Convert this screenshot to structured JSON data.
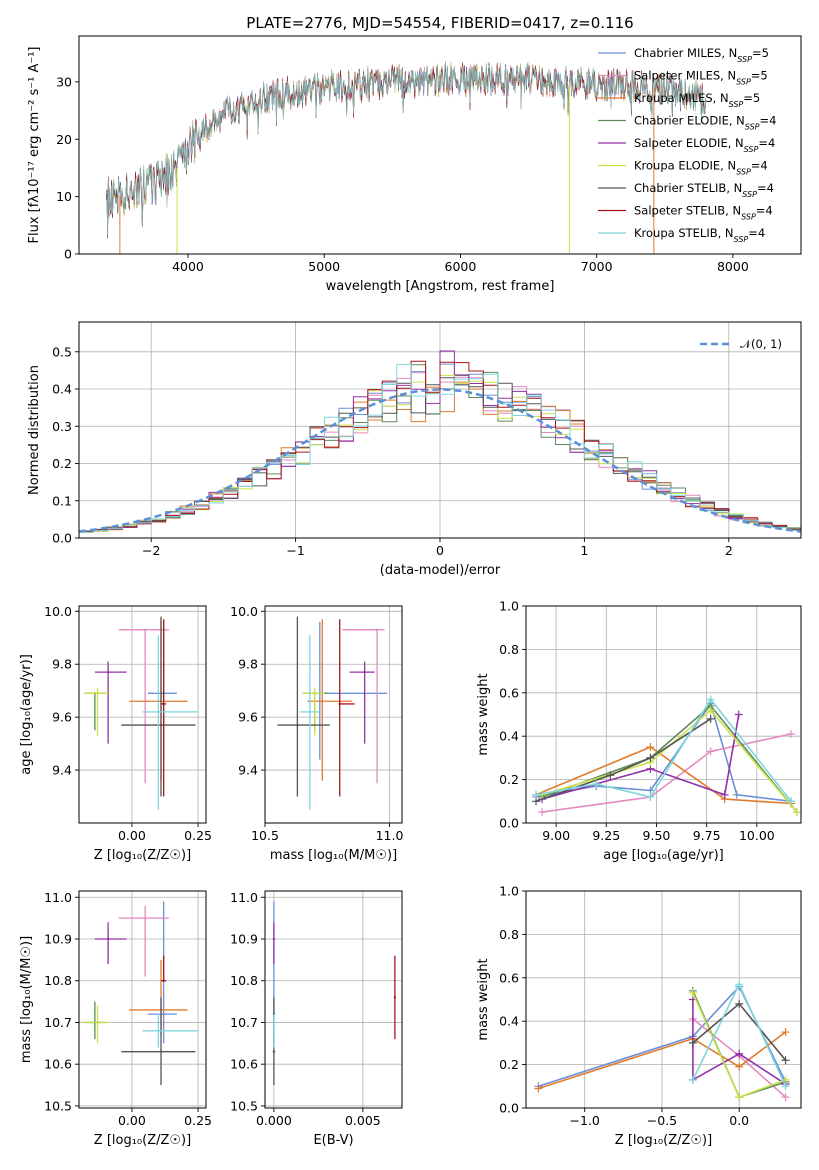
{
  "colors": {
    "Chabrier MILES": "#6d8fd8",
    "Salpeter MILES": "#e58ac0",
    "Kroupa MILES": "#e07b2c",
    "Chabrier ELODIE": "#5f8a5a",
    "Salpeter ELODIE": "#9330a8",
    "Kroupa ELODIE": "#c9e24a",
    "Chabrier STELIB": "#555555",
    "Salpeter STELIB": "#a8141e",
    "Kroupa STELIB": "#7ed6dc",
    "normal": "#5b8fd6"
  },
  "chart_data": [
    {
      "id": "spectrum",
      "type": "line",
      "title": "PLATE=2776, MJD=54554, FIBERID=0417, z=0.116",
      "xlabel": "wavelength [Angstrom, rest frame]",
      "ylabel": "Flux [fλ10⁻¹⁷ erg cm⁻² s⁻¹ A⁻¹]",
      "xlim": [
        3200,
        8500
      ],
      "ylim": [
        0,
        38
      ],
      "xticks": [
        "4000",
        "5000",
        "6000",
        "7000",
        "8000"
      ],
      "yticks": [
        "0",
        "10",
        "20",
        "30"
      ],
      "grid": false,
      "legend_position": "top-right",
      "legend": [
        "Chabrier MILES, N_SSP=5",
        "Salpeter MILES, N_SSP=5",
        "Kroupa MILES, N_SSP=5",
        "Chabrier ELODIE, N_SSP=4",
        "Salpeter ELODIE, N_SSP=4",
        "Kroupa ELODIE, N_SSP=4",
        "Chabrier STELIB, N_SSP=4",
        "Salpeter STELIB, N_SSP=4",
        "Kroupa STELIB, N_SSP=4"
      ],
      "legend_keys": [
        "Chabrier MILES",
        "Salpeter MILES",
        "Kroupa MILES",
        "Chabrier ELODIE",
        "Salpeter ELODIE",
        "Kroupa ELODIE",
        "Chabrier STELIB",
        "Salpeter STELIB",
        "Kroupa STELIB"
      ],
      "continuum": [
        [
          3400,
          9.5
        ],
        [
          3600,
          11
        ],
        [
          3800,
          13
        ],
        [
          3950,
          15.5
        ],
        [
          4050,
          21
        ],
        [
          4300,
          25
        ],
        [
          4600,
          27.5
        ],
        [
          5000,
          29
        ],
        [
          5500,
          30
        ],
        [
          6000,
          30.5
        ],
        [
          6500,
          30.5
        ],
        [
          7000,
          29.5
        ],
        [
          7500,
          29
        ],
        [
          7800,
          27
        ]
      ],
      "spectrum_range": [
        3400,
        7800
      ],
      "spikes": [
        {
          "x": 3500,
          "series": "Kroupa MILES"
        },
        {
          "x": 3920,
          "series": "Kroupa ELODIE"
        },
        {
          "x": 6800,
          "series": "Kroupa ELODIE"
        },
        {
          "x": 7420,
          "series": "Kroupa MILES"
        }
      ]
    },
    {
      "id": "histogram",
      "type": "bar",
      "xlabel": "(data-model)/error",
      "ylabel": "Normed distribution",
      "xlim": [
        -2.5,
        2.5
      ],
      "ylim": [
        0,
        0.58
      ],
      "xticks": [
        "−2",
        "−1",
        "0",
        "1",
        "2"
      ],
      "yticks": [
        "0.0",
        "0.1",
        "0.2",
        "0.3",
        "0.4",
        "0.5"
      ],
      "grid": true,
      "legend_position": "top-right",
      "legend": [
        "𝒩(0, 1)"
      ],
      "bin_width": 0.1
    },
    {
      "id": "age_vs_Z",
      "type": "scatter",
      "xlabel": "Z [log₁₀(Z/Z☉)]",
      "ylabel": "age  [log₁₀(age/yr)]",
      "xlim": [
        -0.2,
        0.28
      ],
      "ylim": [
        9.2,
        10.02
      ],
      "xticks": [
        "0.00",
        "0.25"
      ],
      "yticks": [
        "9.4",
        "9.6",
        "9.8",
        "10.0"
      ],
      "grid": true,
      "points": [
        {
          "series": "Chabrier MILES",
          "x": 0.12,
          "y": 9.69,
          "xerr": [
            0.06,
            0.05
          ],
          "yerr": [
            0.25,
            0.27
          ]
        },
        {
          "series": "Salpeter MILES",
          "x": 0.05,
          "y": 9.93,
          "xerr": [
            0.1,
            0.09
          ],
          "yerr": [
            0.58,
            0.0
          ]
        },
        {
          "series": "Kroupa MILES",
          "x": 0.11,
          "y": 9.66,
          "xerr": [
            0.12,
            0.1
          ],
          "yerr": [
            0.3,
            0.31
          ]
        },
        {
          "series": "Chabrier ELODIE",
          "x": -0.14,
          "y": 9.69,
          "xerr": [
            0.04,
            0.04
          ],
          "yerr": [
            0.14,
            0.0
          ]
        },
        {
          "series": "Salpeter ELODIE",
          "x": -0.09,
          "y": 9.77,
          "xerr": [
            0.05,
            0.07
          ],
          "yerr": [
            0.27,
            0.04
          ]
        },
        {
          "series": "Kroupa ELODIE",
          "x": -0.13,
          "y": 9.69,
          "xerr": [
            0.05,
            0.04
          ],
          "yerr": [
            0.16,
            0.02
          ]
        },
        {
          "series": "Chabrier STELIB",
          "x": 0.11,
          "y": 9.57,
          "xerr": [
            0.15,
            0.13
          ],
          "yerr": [
            0.27,
            0.41
          ]
        },
        {
          "series": "Salpeter STELIB",
          "x": 0.12,
          "y": 9.65,
          "xerr": [
            0.01,
            0.01
          ],
          "yerr": [
            0.35,
            0.32
          ]
        },
        {
          "series": "Kroupa STELIB",
          "x": 0.1,
          "y": 9.62,
          "xerr": [
            0.06,
            0.15
          ],
          "yerr": [
            0.37,
            0.29
          ]
        }
      ]
    },
    {
      "id": "age_vs_mass",
      "type": "scatter",
      "xlabel": "mass [log₁₀(M/M☉)]",
      "ylabel": "",
      "xlim": [
        10.5,
        11.05
      ],
      "ylim": [
        9.2,
        10.02
      ],
      "xticks": [
        "10.5",
        "11.0"
      ],
      "yticks": [
        "9.4",
        "9.6",
        "9.8",
        "10.0"
      ],
      "grid": true,
      "points": [
        {
          "series": "Chabrier MILES",
          "x": 10.72,
          "y": 9.69,
          "xerr": [
            0.07,
            0.27
          ],
          "yerr": [
            0.25,
            0.27
          ]
        },
        {
          "series": "Salpeter MILES",
          "x": 10.95,
          "y": 9.93,
          "xerr": [
            0.14,
            0.03
          ],
          "yerr": [
            0.58,
            0.0
          ]
        },
        {
          "series": "Kroupa MILES",
          "x": 10.73,
          "y": 9.66,
          "xerr": [
            0.06,
            0.12
          ],
          "yerr": [
            0.3,
            0.31
          ]
        },
        {
          "series": "Chabrier ELODIE",
          "x": 10.7,
          "y": 9.69,
          "xerr": [
            0.04,
            0.05
          ],
          "yerr": [
            0.14,
            0.0
          ]
        },
        {
          "series": "Salpeter ELODIE",
          "x": 10.9,
          "y": 9.77,
          "xerr": [
            0.06,
            0.04
          ],
          "yerr": [
            0.27,
            0.04
          ]
        },
        {
          "series": "Kroupa ELODIE",
          "x": 10.7,
          "y": 9.69,
          "xerr": [
            0.05,
            0.04
          ],
          "yerr": [
            0.16,
            0.02
          ]
        },
        {
          "series": "Chabrier STELIB",
          "x": 10.63,
          "y": 9.57,
          "xerr": [
            0.08,
            0.13
          ],
          "yerr": [
            0.27,
            0.41
          ]
        },
        {
          "series": "Salpeter STELIB",
          "x": 10.8,
          "y": 9.65,
          "xerr": [
            0.0,
            0.06
          ],
          "yerr": [
            0.35,
            0.32
          ]
        },
        {
          "series": "Kroupa STELIB",
          "x": 10.68,
          "y": 9.62,
          "xerr": [
            0.04,
            0.04
          ],
          "yerr": [
            0.37,
            0.29
          ]
        }
      ]
    },
    {
      "id": "weight_vs_age",
      "type": "line",
      "xlabel": "age  [log₁₀(age/yr)]",
      "ylabel": "mass weight",
      "xlim": [
        8.85,
        10.22
      ],
      "ylim": [
        0,
        1.0
      ],
      "xticks": [
        "9.00",
        "9.25",
        "9.50",
        "9.75",
        "10.00"
      ],
      "yticks": [
        "0.0",
        "0.2",
        "0.4",
        "0.6",
        "0.8",
        "1.0"
      ],
      "grid": true,
      "series": [
        {
          "key": "Chabrier MILES",
          "x": [
            8.9,
            9.2,
            9.47,
            9.77,
            9.9,
            10.17
          ],
          "y": [
            0.12,
            0.17,
            0.15,
            0.55,
            0.13,
            0.1
          ]
        },
        {
          "key": "Salpeter MILES",
          "x": [
            8.93,
            9.47,
            9.77,
            10.17
          ],
          "y": [
            0.05,
            0.12,
            0.33,
            0.41
          ]
        },
        {
          "key": "Kroupa MILES",
          "x": [
            8.9,
            9.47,
            9.84,
            10.17
          ],
          "y": [
            0.13,
            0.35,
            0.11,
            0.09
          ]
        },
        {
          "key": "Chabrier ELODIE",
          "x": [
            8.93,
            9.47,
            9.77,
            10.2
          ],
          "y": [
            0.12,
            0.3,
            0.54,
            0.05
          ]
        },
        {
          "key": "Salpeter ELODIE",
          "x": [
            8.93,
            9.47,
            9.84,
            9.91
          ],
          "y": [
            0.11,
            0.25,
            0.13,
            0.5
          ]
        },
        {
          "key": "Kroupa ELODIE",
          "x": [
            8.93,
            9.47,
            9.77,
            10.2
          ],
          "y": [
            0.13,
            0.28,
            0.52,
            0.05
          ]
        },
        {
          "key": "Chabrier STELIB",
          "x": [
            8.9,
            9.27,
            9.47,
            9.77
          ],
          "y": [
            0.1,
            0.22,
            0.3,
            0.48
          ]
        },
        {
          "key": "Kroupa STELIB",
          "x": [
            8.9,
            9.2,
            9.47,
            9.77,
            10.17
          ],
          "y": [
            0.13,
            0.18,
            0.12,
            0.57,
            0.1
          ]
        }
      ]
    },
    {
      "id": "mass_vs_Z",
      "type": "scatter",
      "xlabel": "Z [log₁₀(Z/Z☉)]",
      "ylabel": "mass [log₁₀(M/M☉)]",
      "xlim": [
        -0.2,
        0.28
      ],
      "ylim": [
        10.495,
        11.015
      ],
      "xticks": [
        "0.00",
        "0.25"
      ],
      "yticks": [
        "10.5",
        "10.6",
        "10.7",
        "10.8",
        "10.9",
        "11.0"
      ],
      "grid": true,
      "points": [
        {
          "series": "Chabrier MILES",
          "x": 0.12,
          "y": 10.72,
          "xerr": [
            0.06,
            0.05
          ],
          "yerr": [
            0.07,
            0.27
          ]
        },
        {
          "series": "Salpeter MILES",
          "x": 0.05,
          "y": 10.95,
          "xerr": [
            0.1,
            0.09
          ],
          "yerr": [
            0.14,
            0.03
          ]
        },
        {
          "series": "Kroupa MILES",
          "x": 0.11,
          "y": 10.73,
          "xerr": [
            0.12,
            0.1
          ],
          "yerr": [
            0.06,
            0.12
          ]
        },
        {
          "series": "Chabrier ELODIE",
          "x": -0.14,
          "y": 10.7,
          "xerr": [
            0.04,
            0.04
          ],
          "yerr": [
            0.04,
            0.05
          ]
        },
        {
          "series": "Salpeter ELODIE",
          "x": -0.09,
          "y": 10.9,
          "xerr": [
            0.05,
            0.07
          ],
          "yerr": [
            0.06,
            0.04
          ]
        },
        {
          "series": "Kroupa ELODIE",
          "x": -0.13,
          "y": 10.7,
          "xerr": [
            0.05,
            0.04
          ],
          "yerr": [
            0.05,
            0.04
          ]
        },
        {
          "series": "Chabrier STELIB",
          "x": 0.11,
          "y": 10.63,
          "xerr": [
            0.15,
            0.13
          ],
          "yerr": [
            0.08,
            0.13
          ]
        },
        {
          "series": "Salpeter STELIB",
          "x": 0.12,
          "y": 10.8,
          "xerr": [
            0.01,
            0.01
          ],
          "yerr": [
            0.0,
            0.06
          ]
        },
        {
          "series": "Kroupa STELIB",
          "x": 0.1,
          "y": 10.68,
          "xerr": [
            0.06,
            0.15
          ],
          "yerr": [
            0.04,
            0.04
          ]
        }
      ]
    },
    {
      "id": "mass_vs_ebv",
      "type": "scatter",
      "xlabel": "E(B-V)",
      "ylabel": "",
      "xlim": [
        -0.0005,
        0.0072
      ],
      "ylim": [
        10.495,
        11.015
      ],
      "xticks": [
        "0.000",
        "0.005"
      ],
      "yticks": [
        "10.5",
        "10.6",
        "10.7",
        "10.8",
        "10.9",
        "11.0"
      ],
      "grid": true,
      "points": [
        {
          "series": "Chabrier MILES",
          "x": 0.0,
          "y": 10.72,
          "yerr": [
            0.07,
            0.27
          ]
        },
        {
          "series": "Salpeter ELODIE",
          "x": 0.0,
          "y": 10.9,
          "yerr": [
            0.06,
            0.04
          ]
        },
        {
          "series": "Chabrier STELIB",
          "x": 0.0,
          "y": 10.63,
          "yerr": [
            0.08,
            0.13
          ]
        },
        {
          "series": "Kroupa STELIB",
          "x": 0.0,
          "y": 10.68,
          "yerr": [
            0.04,
            0.04
          ]
        },
        {
          "series": "Salpeter STELIB",
          "x": 0.0068,
          "y": 10.76,
          "yerr": [
            0.1,
            0.1
          ]
        }
      ]
    },
    {
      "id": "weight_vs_Z",
      "type": "line",
      "xlabel": "Z [log₁₀(Z/Z☉)]",
      "ylabel": "mass weight",
      "xlim": [
        -1.38,
        0.4
      ],
      "ylim": [
        0,
        1.0
      ],
      "xticks": [
        "−1.0",
        "−0.5",
        "0.0"
      ],
      "yticks": [
        "0.0",
        "0.2",
        "0.4",
        "0.6",
        "0.8",
        "1.0"
      ],
      "grid": true,
      "series": [
        {
          "key": "Chabrier MILES",
          "x": [
            -1.3,
            -0.3,
            0.0,
            0.3
          ],
          "y": [
            0.1,
            0.33,
            0.56,
            0.12
          ]
        },
        {
          "key": "Salpeter MILES",
          "x": [
            -0.3,
            0.0,
            0.3
          ],
          "y": [
            0.41,
            0.24,
            0.05
          ]
        },
        {
          "key": "Kroupa MILES",
          "x": [
            -1.3,
            -0.3,
            0.0,
            0.3
          ],
          "y": [
            0.09,
            0.32,
            0.19,
            0.35
          ]
        },
        {
          "key": "Chabrier ELODIE",
          "x": [
            -0.3,
            0.0,
            0.3
          ],
          "y": [
            0.54,
            0.05,
            0.12
          ]
        },
        {
          "key": "Salpeter ELODIE",
          "x": [
            -0.3,
            -0.3,
            0.0,
            0.3
          ],
          "y": [
            0.5,
            0.13,
            0.25,
            0.11
          ]
        },
        {
          "key": "Kroupa ELODIE",
          "x": [
            -0.3,
            0.0,
            0.3
          ],
          "y": [
            0.53,
            0.05,
            0.13
          ]
        },
        {
          "key": "Chabrier STELIB",
          "x": [
            -0.3,
            0.0,
            0.3
          ],
          "y": [
            0.3,
            0.48,
            0.22
          ]
        },
        {
          "key": "Kroupa STELIB",
          "x": [
            -0.3,
            0.0,
            0.3
          ],
          "y": [
            0.13,
            0.57,
            0.1
          ]
        }
      ]
    }
  ]
}
